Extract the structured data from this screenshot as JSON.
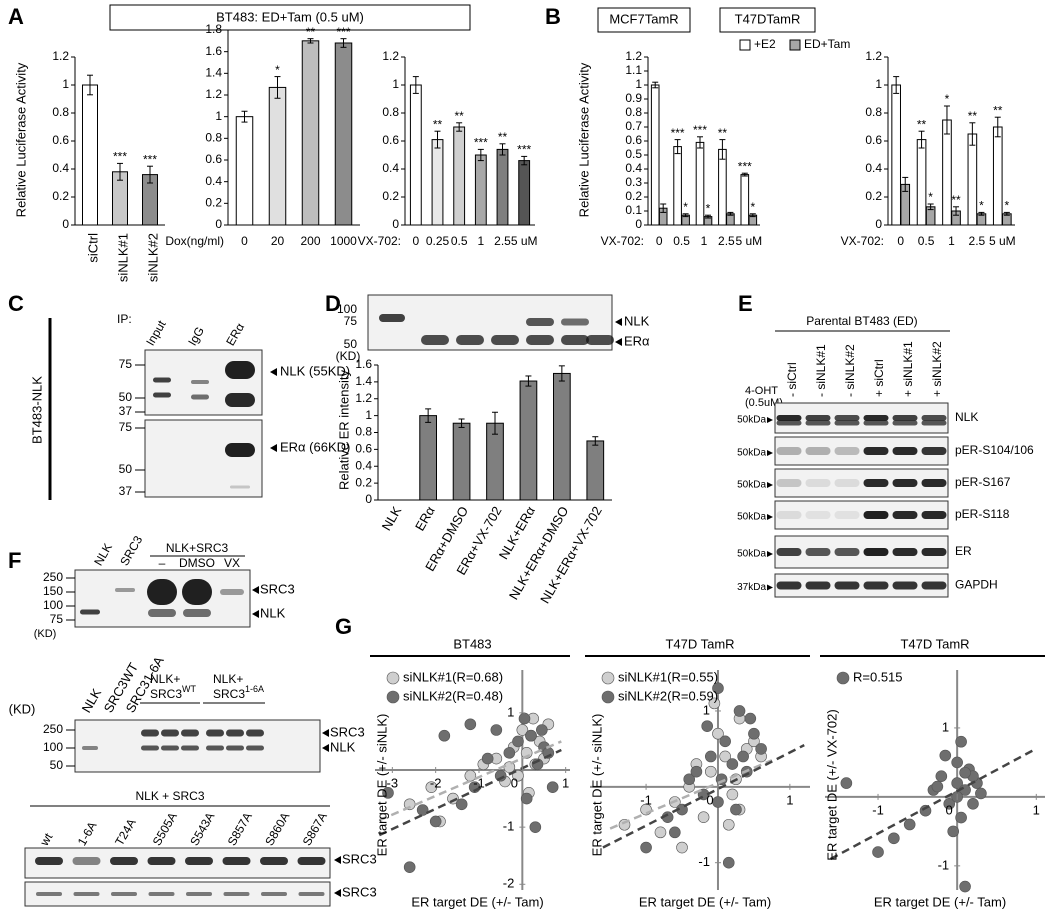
{
  "A": {
    "letter": "A",
    "header": "BT483: ED+Tam (0.5 uM)",
    "y_label": "Relative Luciferase Activity",
    "charts": [
      {
        "type": "bar",
        "categories": [
          "siCtrl",
          "siNLK#1",
          "siNLK#2"
        ],
        "values": [
          1,
          0.38,
          0.36
        ],
        "errors": [
          0.07,
          0.06,
          0.06
        ],
        "significance": [
          null,
          "***",
          "***"
        ],
        "colors": [
          "#ffffff",
          "#c8c8c8",
          "#8c8c8c"
        ],
        "ylim": [
          0,
          1.2
        ],
        "yticks": [
          0,
          0.2,
          0.4,
          0.6,
          0.8,
          1,
          1.2
        ]
      },
      {
        "type": "bar",
        "x_label": "Dox(ng/ml)",
        "categories": [
          "0",
          "20",
          "200",
          "1000"
        ],
        "values": [
          1,
          1.27,
          1.7,
          1.68
        ],
        "errors": [
          0.05,
          0.1,
          0.02,
          0.04
        ],
        "significance": [
          null,
          "*",
          "**",
          "***"
        ],
        "colors": [
          "#ffffff",
          "#e0e0e0",
          "#bdbdbd",
          "#8c8c8c"
        ],
        "ylim": [
          0,
          1.8
        ],
        "yticks": [
          0,
          0.2,
          0.4,
          0.6,
          0.8,
          1,
          1.2,
          1.4,
          1.6,
          1.8
        ]
      },
      {
        "type": "bar",
        "x_label": "VX-702:",
        "categories": [
          "0",
          "0.25",
          "0.5",
          "1",
          "2.5",
          "5 uM"
        ],
        "values": [
          1,
          0.61,
          0.7,
          0.5,
          0.54,
          0.46
        ],
        "errors": [
          0.06,
          0.06,
          0.03,
          0.04,
          0.04,
          0.03
        ],
        "significance": [
          null,
          "**",
          "**",
          "***",
          "**",
          "***"
        ],
        "colors": [
          "#ffffff",
          "#e8e8e8",
          "#d0d0d0",
          "#a8a8a8",
          "#7f7f7f",
          "#555555"
        ],
        "ylim": [
          0,
          1.2
        ],
        "yticks": [
          0,
          0.2,
          0.4,
          0.6,
          0.8,
          1,
          1.2
        ]
      }
    ]
  },
  "B": {
    "letter": "B",
    "headers": [
      "MCF7TamR",
      "T47DTamR"
    ],
    "y_label": "Relative Luciferase Activity",
    "charts": [
      {
        "type": "bar",
        "x_label": "VX-702:",
        "categories": [
          "0",
          "0.5",
          "1",
          "2.5",
          "5 uM"
        ],
        "ylim": [
          0,
          1.2
        ],
        "yticks": [
          0,
          0.1,
          0.2,
          0.3,
          0.4,
          0.5,
          0.6,
          0.7,
          0.8,
          0.9,
          1,
          1.1,
          1.2
        ],
        "series": [
          {
            "name": "+E2",
            "color": "#ffffff",
            "values": [
              1,
              0.56,
              0.59,
              0.54,
              0.36
            ],
            "errors": [
              0.02,
              0.05,
              0.04,
              0.07,
              0.01
            ],
            "significance": [
              null,
              "***",
              "***",
              "**",
              "***"
            ]
          },
          {
            "name": "ED+Tam",
            "color": "#a6a6a6",
            "values": [
              0.12,
              0.07,
              0.06,
              0.08,
              0.07
            ],
            "errors": [
              0.03,
              0.01,
              0.01,
              0.01,
              0.01
            ],
            "significance": [
              null,
              "*",
              "*",
              null,
              "*"
            ]
          }
        ]
      },
      {
        "type": "bar",
        "x_label": "VX-702:",
        "categories": [
          "0",
          "0.5",
          "1",
          "2.5",
          "5 uM"
        ],
        "ylim": [
          0,
          1.2
        ],
        "yticks": [
          0,
          0.2,
          0.4,
          0.6,
          0.8,
          1,
          1.2
        ],
        "series": [
          {
            "color": "#ffffff",
            "values": [
              1,
              0.61,
              0.75,
              0.65,
              0.7
            ],
            "errors": [
              0.06,
              0.06,
              0.1,
              0.08,
              0.07
            ],
            "significance": [
              null,
              "**",
              "*",
              "**",
              "**"
            ]
          },
          {
            "color": "#a6a6a6",
            "values": [
              0.29,
              0.13,
              0.1,
              0.08,
              0.08
            ],
            "errors": [
              0.05,
              0.02,
              0.03,
              0.01,
              0.01
            ],
            "significance": [
              null,
              "*",
              "**",
              "*",
              "*"
            ]
          }
        ]
      }
    ]
  },
  "C": {
    "letter": "C",
    "ip": "IP:",
    "lanes": [
      "Input",
      "IgG",
      "ERα"
    ],
    "side_label": "BT483-NLK",
    "blots": [
      {
        "ladder": [
          "75",
          "50",
          "37"
        ],
        "band": "NLK (55KD)"
      },
      {
        "ladder": [
          "75",
          "50",
          "37"
        ],
        "band": "ERα (66KD)"
      }
    ]
  },
  "D": {
    "letter": "D",
    "blot": {
      "ladder": [
        "100",
        "75",
        "50"
      ],
      "unit": "(KD)",
      "bands": [
        "NLK",
        "ERα"
      ]
    },
    "chart": {
      "type": "bar",
      "y_label": "Relative ER intensity",
      "categories": [
        "NLK",
        "ERα",
        "ERα+DMSO",
        "ERα+VX-702",
        "NLK+ERα",
        "NLK+ERα+DMSO",
        "NLK+ERα+VX-702"
      ],
      "values": [
        null,
        1.0,
        0.91,
        0.91,
        1.41,
        1.5,
        0.7
      ],
      "errors": [
        null,
        0.08,
        0.05,
        0.13,
        0.06,
        0.09,
        0.05
      ],
      "color": "#7f7f7f",
      "ylim": [
        0,
        1.6
      ],
      "yticks": [
        0,
        0.2,
        0.4,
        0.6,
        0.8,
        1,
        1.2,
        1.4,
        1.6
      ]
    }
  },
  "E": {
    "letter": "E",
    "group": "Parental BT483 (ED)",
    "treatment": [
      "4-OHT",
      "(0.5uM)"
    ],
    "lanes": [
      "- siCtrl",
      "- siNLK#1",
      "- siNLK#2",
      "+ siCtrl",
      "+ siNLK#1",
      "+ siNLK#2"
    ],
    "rows": [
      {
        "label": "NLK",
        "marker": "50kDa"
      },
      {
        "label": "pER-S104/106",
        "marker": "50kDa"
      },
      {
        "label": "pER-S167",
        "marker": "50kDa"
      },
      {
        "label": "pER-S118",
        "marker": "50kDa"
      },
      {
        "label": "ER",
        "marker": "50kDa"
      },
      {
        "label": "GAPDH",
        "marker": "37kDa"
      }
    ]
  },
  "F": {
    "letter": "F",
    "blot1": {
      "lanes": [
        "NLK",
        "SRC3"
      ],
      "group": "NLK+SRC3",
      "group_lanes": [
        "–",
        "DMSO",
        "VX"
      ],
      "ladder": [
        "250",
        "150",
        "100",
        "75"
      ],
      "unit": "(KD)",
      "bands": [
        "SRC3",
        "NLK"
      ]
    },
    "blot2": {
      "unit": "(KD)",
      "lanes": [
        "NLK",
        "SRC3WT",
        "SRC31-6A"
      ],
      "groups": [
        [
          "NLK+",
          "SRC3",
          "WT"
        ],
        [
          "NLK+",
          "SRC3",
          "1-6A"
        ]
      ],
      "ladder": [
        "250",
        "100",
        "50"
      ],
      "bands": [
        "SRC3",
        "NLK"
      ]
    },
    "blot3": {
      "group": "NLK + SRC3",
      "lanes": [
        "wt",
        "1-6A",
        "T24A",
        "S505A",
        "S543A",
        "S857A",
        "S860A",
        "S867A"
      ],
      "bands": [
        "SRC3",
        "SRC3"
      ]
    }
  },
  "G": {
    "letter": "G",
    "panels": [
      {
        "type": "scatter",
        "title": "BT483",
        "x_label": "ER target DE (+/- Tam)",
        "y_label": "ER target DE (+/- siNLK)",
        "xlim": [
          -3.4,
          1.1
        ],
        "ylim": [
          -2.1,
          1.75
        ],
        "xticks": [
          -3,
          -2,
          -1,
          0,
          1
        ],
        "yticks": [
          1,
          -1,
          -2
        ],
        "series": [
          {
            "name": "siNLK#1(R=0.68)",
            "color": "#cfcfcf",
            "x": [
              -2.6,
              -2.1,
              -1.6,
              -1.2,
              -0.9,
              -0.6,
              -0.4,
              -0.2,
              0,
              0.1,
              0.2,
              0.3,
              0.4,
              0.5,
              -0.3,
              0.15,
              -1.9,
              0.6,
              0.25,
              -0.1
            ],
            "y": [
              -0.6,
              -0.3,
              -0.5,
              -0.1,
              0.1,
              0.2,
              -0.2,
              0.4,
              0.7,
              0.3,
              0.6,
              0.1,
              0.5,
              0.2,
              0.05,
              -0.4,
              -0.9,
              0.8,
              0.9,
              -0.1
            ],
            "fit": {
              "x": [
                -3.3,
                0.9
              ],
              "y": [
                -0.88,
                0.5
              ]
            }
          },
          {
            "name": "siNLK#2(R=0.48)",
            "color": "#6e6e6e",
            "x": [
              -3.1,
              -2.6,
              -2.3,
              -1.8,
              -1.4,
              -1.1,
              -0.8,
              -0.5,
              -0.3,
              -0.1,
              0.05,
              0.2,
              0.35,
              0.5,
              0.7,
              -2.0,
              0.1,
              0.3,
              -0.6,
              0.45,
              0.6,
              -1.2
            ],
            "y": [
              -0.4,
              -1.7,
              -0.7,
              0.6,
              -0.6,
              -0.3,
              0.2,
              -0.1,
              0.3,
              0.5,
              0.9,
              0.6,
              0.1,
              0.4,
              -0.3,
              -0.9,
              -0.5,
              -1.0,
              0.7,
              0.7,
              0.3,
              0.8
            ],
            "fit": {
              "x": [
                -3.3,
                0.9
              ],
              "y": [
                -1.14,
                0.35
              ]
            }
          }
        ]
      },
      {
        "type": "scatter",
        "title": "T47D TamR",
        "x_label": "ER target DE (+/- Tam)",
        "y_label": "ER target DE (+/- siNLK)",
        "xlim": [
          -1.78,
          1.28
        ],
        "ylim": [
          -1.36,
          1.54
        ],
        "xticks": [
          -1,
          0,
          1
        ],
        "yticks": [
          1,
          -1
        ],
        "series": [
          {
            "name": "siNLK#1(R=0.55)",
            "color": "#cfcfcf",
            "x": [
              -1.3,
              -1.0,
              -0.8,
              -0.6,
              -0.4,
              -0.3,
              -0.2,
              -0.1,
              0,
              0.1,
              0.2,
              0.3,
              0.4,
              0.5,
              -0.5,
              0.15,
              -0.05,
              0.3,
              0.6,
              0.25
            ],
            "y": [
              -0.5,
              -0.3,
              -0.6,
              -0.2,
              0,
              0.3,
              -0.4,
              0.2,
              0.7,
              0.4,
              -0.1,
              0.9,
              0.5,
              0.6,
              -0.8,
              -0.5,
              1.1,
              -0.3,
              0.4,
              0.1
            ],
            "fit": {
              "x": [
                -1.5,
                0.75
              ],
              "y": [
                -0.55,
                0.35
              ]
            }
          },
          {
            "name": "siNLK#2(R=0.59)",
            "color": "#6e6e6e",
            "x": [
              -1.0,
              -0.7,
              -0.5,
              -0.4,
              -0.3,
              -0.2,
              -0.1,
              0,
              0.05,
              0.1,
              0.2,
              0.3,
              0.4,
              0.5,
              0.6,
              -0.6,
              0.15,
              -0.15,
              0.25,
              0.35,
              0.45,
              0
            ],
            "y": [
              -0.8,
              -0.4,
              -0.3,
              0.1,
              0.2,
              -0.1,
              0.4,
              -0.2,
              0.1,
              0.6,
              0.3,
              1.0,
              0.2,
              0.7,
              0.5,
              -0.6,
              -1.0,
              0.8,
              -0.3,
              0.4,
              0.9,
              1.3
            ],
            "fit": {
              "x": [
                -1.6,
                1.2
              ],
              "y": [
                -0.8,
                0.55
              ]
            }
          }
        ]
      },
      {
        "type": "scatter",
        "title": "T47D TamR",
        "x_label": "ER target DE (+/- Tam)",
        "y_label": "ER target DE (+/- VX-702)",
        "xlim": [
          -1.67,
          1.11
        ],
        "ylim": [
          -1.35,
          1.84
        ],
        "xticks": [
          -1,
          0,
          1
        ],
        "yticks": [
          1,
          -1
        ],
        "series": [
          {
            "name": "R=0.515",
            "color": "#6e6e6e",
            "x": [
              -1.4,
              -1.0,
              -0.8,
              -0.6,
              -0.4,
              -0.3,
              -0.2,
              -0.1,
              0,
              0,
              0.05,
              0.1,
              0.15,
              0.2,
              0.25,
              0.3,
              -0.15,
              0.05,
              -0.05,
              0.1,
              0.2,
              0,
              -0.25,
              0.1
            ],
            "y": [
              0.2,
              -0.8,
              -0.6,
              -0.4,
              -0.2,
              0.1,
              0.3,
              -0.1,
              0.5,
              0.2,
              -0.3,
              0.1,
              0.4,
              -0.1,
              0.2,
              0.05,
              0.6,
              0.8,
              -0.5,
              -1.3,
              0.3,
              0,
              0.15,
              0.35
            ],
            "fit": {
              "x": [
                -1.6,
                1.0
              ],
              "y": [
                -0.9,
                0.7
              ]
            }
          }
        ]
      }
    ]
  }
}
